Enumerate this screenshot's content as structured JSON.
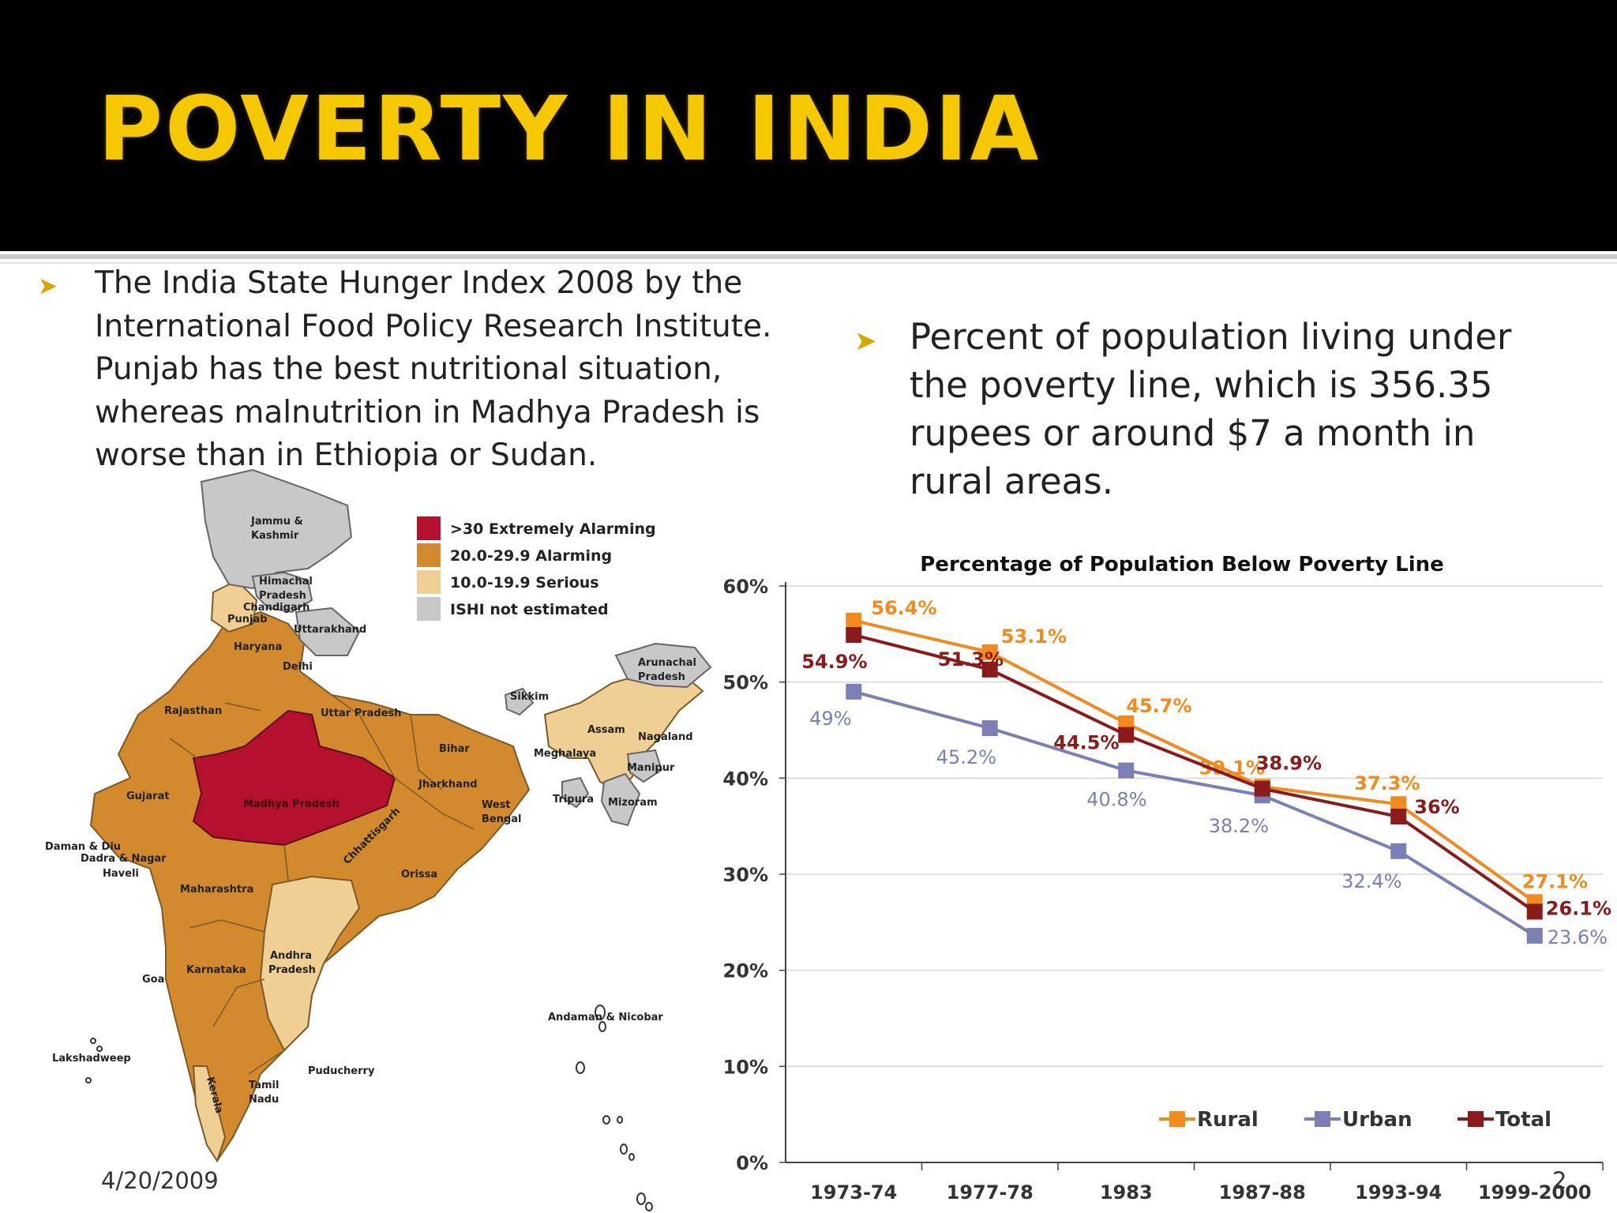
{
  "slide": {
    "title": "POVERTY IN INDIA",
    "bullet1": "The India State Hunger Index 2008 by the International Food Policy Research Institute. Punjab has the best nutritional situation, whereas malnutrition in Madhya Pradesh is worse than in Ethiopia or Sudan.",
    "bullet2": "Percent of population living under the poverty line, which is 356.35 rupees or around $7 a month in rural areas.",
    "date": "4/20/2009",
    "page_number": "2"
  },
  "map": {
    "legend": [
      {
        "label": ">30 Extremely Alarming",
        "color": "#b5102e"
      },
      {
        "label": "20.0-29.9 Alarming",
        "color": "#d28a2c"
      },
      {
        "label": "10.0-19.9 Serious",
        "color": "#f0cf94"
      },
      {
        "label": "ISHI not estimated",
        "color": "#c8c8c8"
      }
    ],
    "labels": {
      "jk1": "Jammu &",
      "jk2": "Kashmir",
      "hp1": "Himachal",
      "hp2": "Pradesh",
      "chandigarh": "Chandigarh",
      "punjab": "Punjab",
      "uttarakhand": "Uttarakhand",
      "haryana": "Haryana",
      "delhi": "Delhi",
      "rajasthan": "Rajasthan",
      "up": "Uttar Pradesh",
      "sikkim": "Sikkim",
      "ar1": "Arunachal",
      "ar2": "Pradesh",
      "assam": "Assam",
      "nagaland": "Nagaland",
      "meghalaya": "Meghalaya",
      "manipur": "Manipur",
      "bihar": "Bihar",
      "jharkhand": "Jharkhand",
      "gujarat": "Gujarat",
      "mp": "Madhya Pradesh",
      "wb1": "West",
      "wb2": "Bengal",
      "tripura": "Tripura",
      "mizoram": "Mizoram",
      "daman": "Daman & Diu",
      "dadra1": "Dadra & Nagar",
      "dadra2": "Haveli",
      "chhattisgarh": "Chhattisgarh",
      "orissa": "Orissa",
      "maharashtra": "Maharashtra",
      "ap1": "Andhra",
      "ap2": "Pradesh",
      "goa": "Goa",
      "karnataka": "Karnataka",
      "andaman": "Andaman & Nicobar",
      "lakshadweep": "Lakshadweep",
      "puducherry": "Puducherry",
      "tn1": "Tamil",
      "tn2": "Nadu",
      "kerala": "Kerala"
    }
  },
  "chart_data": {
    "type": "line",
    "title": "Percentage of Population Below Poverty Line",
    "categories": [
      "1973-74",
      "1977-78",
      "1983",
      "1987-88",
      "1993-94",
      "1999-2000"
    ],
    "y_ticks": [
      "0%",
      "10%",
      "20%",
      "30%",
      "40%",
      "50%",
      "60%"
    ],
    "ylim": [
      0,
      60
    ],
    "grid": true,
    "legend_position": "bottom-right",
    "series": [
      {
        "name": "Rural",
        "color": "#f28a1e",
        "values": [
          56.4,
          53.1,
          45.7,
          39.1,
          37.3,
          27.1
        ],
        "labels": [
          "56.4%",
          "53.1%",
          "45.7%",
          "39.1%",
          "37.3%",
          "27.1%"
        ]
      },
      {
        "name": "Urban",
        "color": "#7b7fb5",
        "values": [
          49,
          45.2,
          40.8,
          38.2,
          32.4,
          23.6
        ],
        "labels": [
          "49%",
          "45.2%",
          "40.8%",
          "38.2%",
          "32.4%",
          "23.6%"
        ]
      },
      {
        "name": "Total",
        "color": "#8b1a1a",
        "values": [
          54.9,
          51.3,
          44.5,
          38.9,
          36,
          26.1
        ],
        "labels": [
          "54.9%",
          "51.3%",
          "44.5%",
          "38.9%",
          "36%",
          "26.1%"
        ]
      }
    ]
  }
}
